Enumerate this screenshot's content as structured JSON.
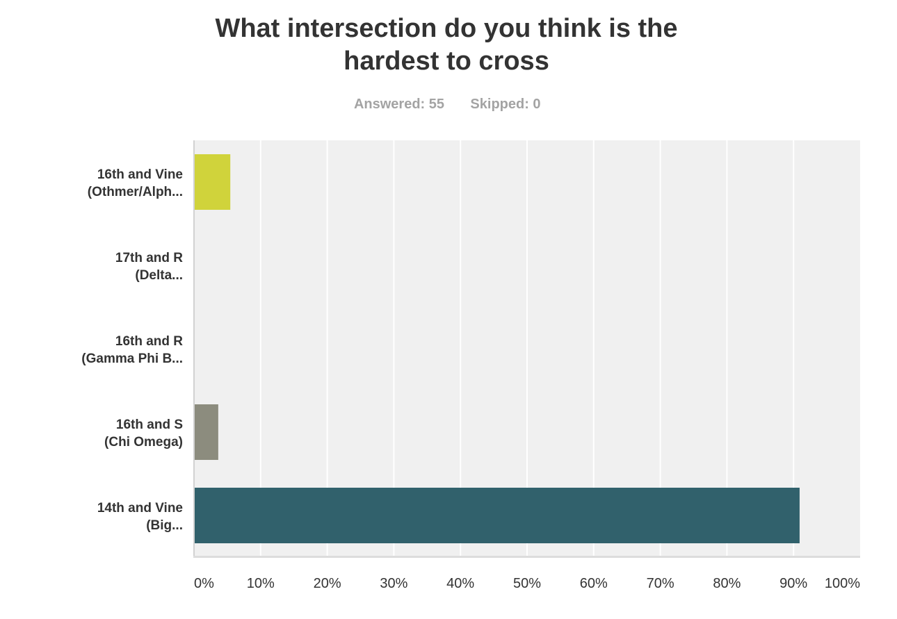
{
  "chart_data": {
    "type": "bar",
    "orientation": "horizontal",
    "title_lines": [
      "What intersection do you think is the",
      "hardest to cross"
    ],
    "subtitle": {
      "answered": "Answered: 55",
      "skipped": "Skipped: 0"
    },
    "categories": [
      [
        "16th and Vine",
        "(Othmer/Alph..."
      ],
      [
        "17th and R",
        "(Delta..."
      ],
      [
        "16th and R",
        "(Gamma Phi B..."
      ],
      [
        "16th and S",
        "(Chi Omega)"
      ],
      [
        "14th and Vine",
        "(Big..."
      ]
    ],
    "values": [
      5.45,
      0,
      0,
      3.64,
      90.91
    ],
    "colors": [
      "#d0d33b",
      "#a0a0a0",
      "#a0a0a0",
      "#8c8c7e",
      "#31616c"
    ],
    "xlim": [
      0,
      100
    ],
    "xticks": [
      "0%",
      "10%",
      "20%",
      "30%",
      "40%",
      "50%",
      "60%",
      "70%",
      "80%",
      "90%",
      "100%"
    ],
    "xlabel": "",
    "ylabel": "",
    "grid": true
  }
}
